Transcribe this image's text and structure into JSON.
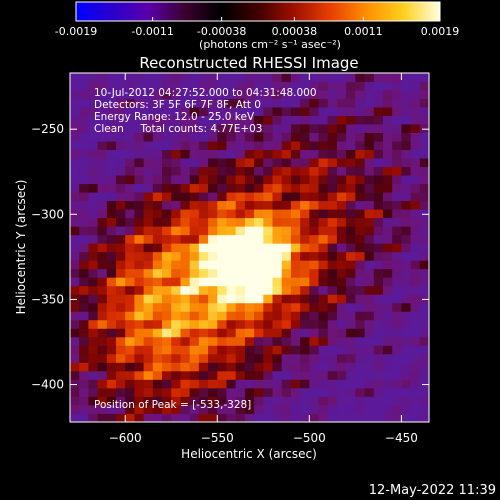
{
  "colorbar": {
    "tick_labels": [
      "-0.0019",
      "-0.0011",
      "-0.00038",
      "0.00038",
      "0.0011",
      "0.0019"
    ],
    "tick_values": [
      -0.0019,
      -0.0011,
      -0.00038,
      0.00038,
      0.0011,
      0.0019
    ],
    "units": "(photons cm⁻² s⁻¹ asec⁻²)",
    "range": [
      -0.0019,
      0.0019
    ],
    "colormap": [
      "#0000ff",
      "#2a00cc",
      "#5a00a8",
      "#3a0030",
      "#000000",
      "#400000",
      "#a01000",
      "#e84000",
      "#ff9000",
      "#ffd020",
      "#ffffe0"
    ]
  },
  "chart_data": {
    "type": "heatmap",
    "title": "Reconstructed RHESSI Image",
    "xlabel": "Heliocentric X (arcsec)",
    "ylabel": "Heliocentric Y (arcsec)",
    "xlim": [
      -630,
      -435
    ],
    "ylim": [
      -422,
      -217
    ],
    "x_ticks": [
      -600,
      -550,
      -500,
      -450
    ],
    "y_ticks": [
      -250,
      -300,
      -350,
      -400
    ],
    "x_tick_labels": [
      "−600",
      "−550",
      "−500",
      "−450"
    ],
    "y_tick_labels": [
      "−250",
      "−300",
      "−350",
      "−400"
    ],
    "annotations": [
      "10-Jul-2012 04:27:52.000 to 04:31:48.000",
      "Detectors: 3F 5F 6F 7F 8F, Att 0",
      "Energy Range: 12.0 - 25.0 keV",
      "Clean     Total counts: 4.77E+03"
    ],
    "peak_label": "Position of Peak = [-533,-328]",
    "peak": [
      -533,
      -328
    ],
    "colors": {
      "background": "#5a1a9a",
      "peak": "#ffffe8"
    }
  },
  "footer": {
    "timestamp": "12-May-2022 11:39"
  }
}
